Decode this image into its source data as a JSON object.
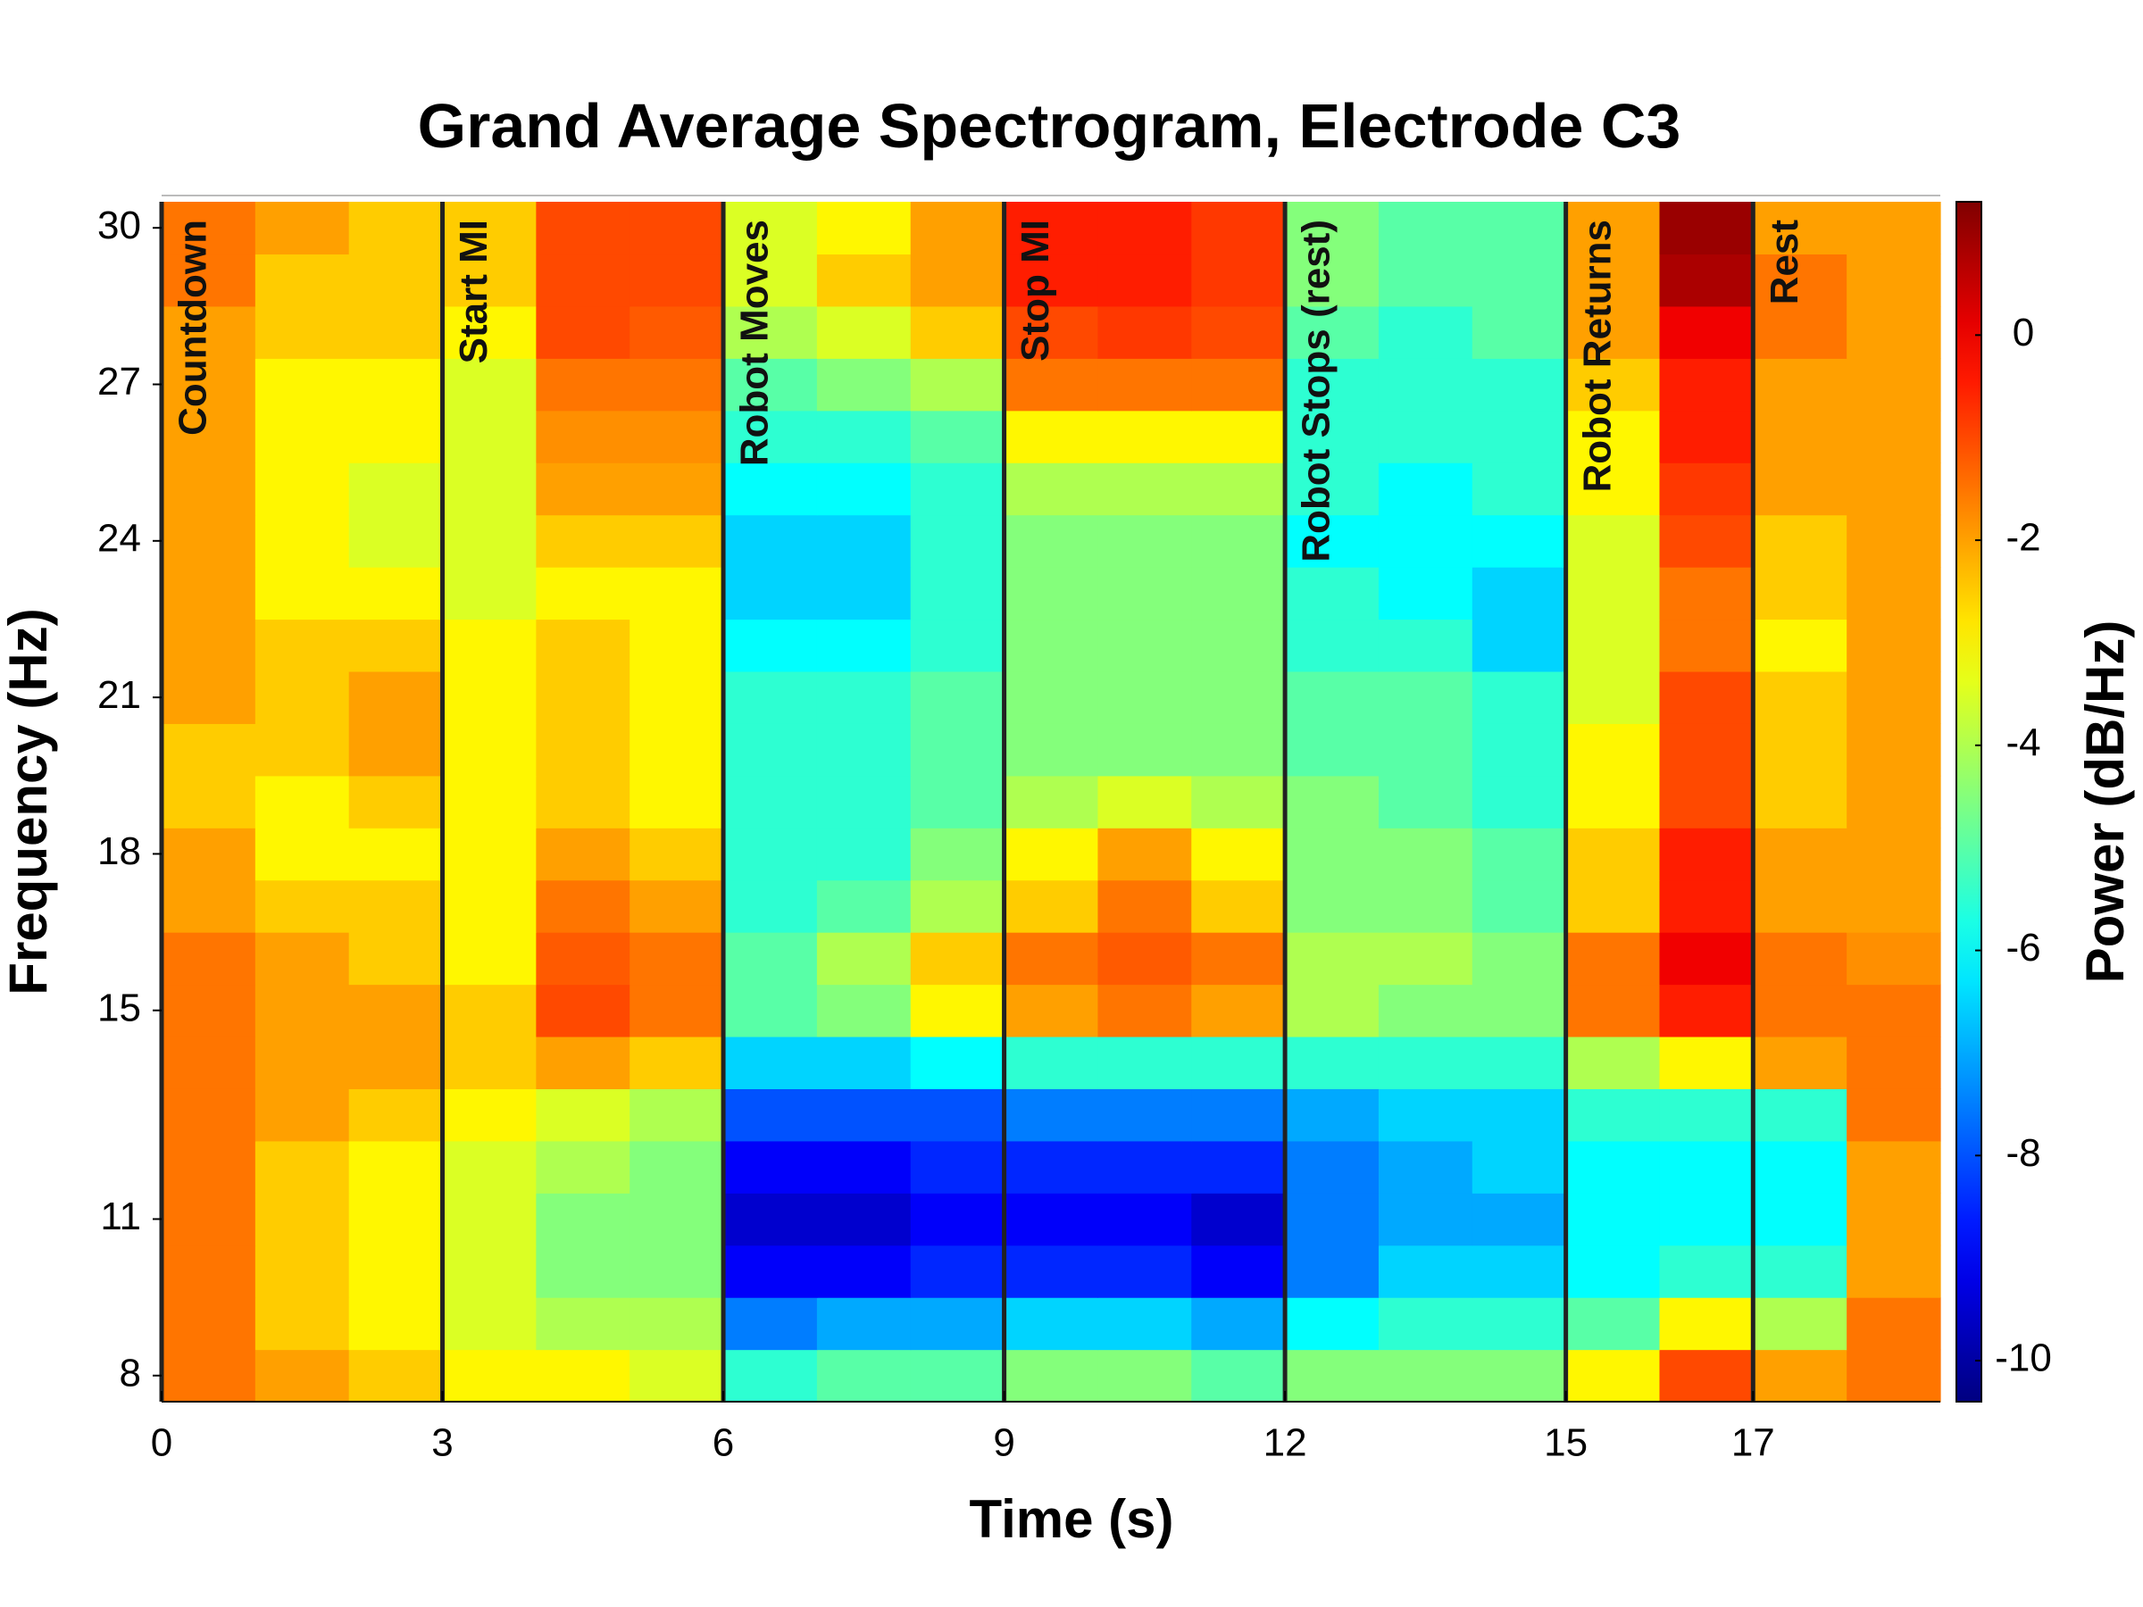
{
  "chart_data": {
    "type": "heatmap",
    "title": "Grand Average Spectrogram, Electrode C3",
    "xlabel": "Time (s)",
    "ylabel": "Frequency (Hz)",
    "colorbar_label": "Power (dB/Hz)",
    "colormap": "jet",
    "x": [
      0.5,
      1.5,
      2.5,
      3.5,
      4.5,
      5.5,
      6.5,
      7.5,
      8.5,
      9.5,
      10.5,
      11.5,
      12.5,
      13.5,
      14.5,
      15.5,
      16.5,
      17.5,
      18.5
    ],
    "y": [
      8,
      9,
      10,
      11,
      12,
      13,
      14,
      15,
      16,
      17,
      18,
      19,
      20,
      21,
      22,
      23,
      24,
      25,
      26,
      27,
      28,
      29,
      30
    ],
    "values": [
      [
        -1.5,
        -2,
        -2.5,
        -3,
        -3,
        -3.5,
        -5.5,
        -5,
        -5,
        -4.5,
        -4.5,
        -5,
        -4.5,
        -4.5,
        -4.5,
        -3,
        -1,
        -2,
        -1.5
      ],
      [
        -1.5,
        -2.5,
        -3,
        -3.5,
        -4,
        -4,
        -7.5,
        -7,
        -7,
        -6.5,
        -6.5,
        -7,
        -6,
        -5.5,
        -5.5,
        -5,
        -3,
        -4,
        -1.5
      ],
      [
        -1.5,
        -2.5,
        -3,
        -3.5,
        -4.5,
        -4.5,
        -9,
        -9,
        -8.5,
        -8.5,
        -8.5,
        -9,
        -7.5,
        -6.5,
        -6.5,
        -6,
        -5.5,
        -5.5,
        -2
      ],
      [
        -1.5,
        -2.5,
        -3,
        -3.5,
        -4.5,
        -4.5,
        -9.5,
        -9.5,
        -9,
        -9,
        -9,
        -9.5,
        -7.5,
        -7,
        -7,
        -6,
        -6,
        -6,
        -2
      ],
      [
        -1.5,
        -2.5,
        -3,
        -3.5,
        -4,
        -4.5,
        -9,
        -9,
        -8.5,
        -8.5,
        -8.5,
        -8.5,
        -7.5,
        -7,
        -6.5,
        -6,
        -6,
        -6,
        -2
      ],
      [
        -1.5,
        -2,
        -2.5,
        -3,
        -3.5,
        -4,
        -8,
        -8,
        -8,
        -7.5,
        -7.5,
        -7.5,
        -7,
        -6.5,
        -6.5,
        -5.5,
        -5.5,
        -5.5,
        -1.5
      ],
      [
        -1.5,
        -2,
        -2,
        -2.5,
        -2,
        -2.5,
        -6.5,
        -6.5,
        -6,
        -5.5,
        -5.5,
        -5.5,
        -5.5,
        -5.5,
        -5.5,
        -4,
        -3,
        -2,
        -1.5
      ],
      [
        -1.5,
        -2,
        -2,
        -2.5,
        -1,
        -1.5,
        -5,
        -4.5,
        -3,
        -2,
        -1.5,
        -2,
        -4,
        -4.5,
        -4.5,
        -1.5,
        -0.5,
        -1.5,
        -1.5
      ],
      [
        -1.5,
        -2,
        -2.5,
        -3,
        -1.2,
        -1.5,
        -5,
        -4,
        -2.5,
        -1.5,
        -1.2,
        -1.5,
        -4,
        -4,
        -4.5,
        -1.5,
        0,
        -1.5,
        -1.8
      ],
      [
        -2,
        -2.5,
        -2.5,
        -3,
        -1.5,
        -2,
        -5.5,
        -5,
        -4,
        -2.5,
        -1.5,
        -2.5,
        -4.5,
        -4.5,
        -5,
        -2.5,
        -0.5,
        -2,
        -2
      ],
      [
        -2,
        -3,
        -3,
        -3,
        -2,
        -2.5,
        -5.5,
        -5.5,
        -4.5,
        -3,
        -2,
        -3,
        -4.5,
        -4.5,
        -5,
        -2.5,
        -0.5,
        -2,
        -2
      ],
      [
        -2.5,
        -3,
        -2.5,
        -3,
        -2.5,
        -3,
        -5.5,
        -5.5,
        -5,
        -4,
        -3.5,
        -4,
        -4.5,
        -5,
        -5.5,
        -3,
        -1,
        -2.5,
        -2
      ],
      [
        -2.5,
        -2.5,
        -2,
        -3,
        -2.5,
        -3,
        -5.5,
        -5.5,
        -5,
        -4.5,
        -4.5,
        -4.5,
        -5,
        -5,
        -5.5,
        -3,
        -1,
        -2.5,
        -2
      ],
      [
        -2,
        -2.5,
        -2,
        -3,
        -2.5,
        -3,
        -5.5,
        -5.5,
        -5,
        -4.5,
        -4.5,
        -4.5,
        -5,
        -5,
        -5.5,
        -3.5,
        -1,
        -2.5,
        -2
      ],
      [
        -2,
        -2.5,
        -2.5,
        -3,
        -2.5,
        -3,
        -6,
        -6,
        -5.5,
        -4.5,
        -4.5,
        -4.5,
        -5.5,
        -5.5,
        -6.5,
        -3.5,
        -1.5,
        -3,
        -2
      ],
      [
        -2,
        -3,
        -3,
        -3.5,
        -3,
        -3,
        -6.5,
        -6.5,
        -5.5,
        -4.5,
        -4.5,
        -4.5,
        -5.5,
        -6,
        -6.5,
        -3.5,
        -1.5,
        -2.5,
        -2
      ],
      [
        -2,
        -3,
        -3.5,
        -3.5,
        -2.5,
        -2.5,
        -6.5,
        -6.5,
        -5.5,
        -4.5,
        -4.5,
        -4.5,
        -6,
        -6,
        -6,
        -3.5,
        -1,
        -2.5,
        -2
      ],
      [
        -2,
        -3,
        -3.5,
        -3.5,
        -2,
        -2,
        -6,
        -6,
        -5.5,
        -4,
        -4,
        -4,
        -5.5,
        -6,
        -5.5,
        -3,
        -0.8,
        -2,
        -2
      ],
      [
        -2,
        -3,
        -3,
        -3.5,
        -1.8,
        -1.8,
        -5.5,
        -5.5,
        -5,
        -3,
        -3,
        -3,
        -5.5,
        -5.5,
        -5.5,
        -3,
        -0.5,
        -2,
        -2
      ],
      [
        -2,
        -3,
        -3,
        -3.5,
        -1.5,
        -1.5,
        -5,
        -4.5,
        -4,
        -1.5,
        -1.5,
        -1.5,
        -5.5,
        -5.5,
        -5.5,
        -2.5,
        -0.5,
        -2,
        -2
      ],
      [
        -2,
        -2.5,
        -2.5,
        -3,
        -1,
        -1.2,
        -4,
        -3.5,
        -2.5,
        -1,
        -0.8,
        -1,
        -5,
        -5.5,
        -5,
        -2,
        0,
        -1.5,
        -2
      ],
      [
        -1.5,
        -2.5,
        -2.5,
        -2.5,
        -1,
        -1,
        -3.5,
        -2.5,
        -2,
        -0.5,
        -0.5,
        -0.8,
        -4.5,
        -5,
        -5,
        -2,
        0.8,
        -1.5,
        -2
      ],
      [
        -1.5,
        -2,
        -2.5,
        -2.5,
        -1,
        -1,
        -3.5,
        -3,
        -2,
        -0.5,
        -0.5,
        -0.8,
        -4.5,
        -5,
        -5,
        -2,
        1,
        -2,
        -2
      ]
    ],
    "xlim": [
      0,
      19
    ],
    "ylim": [
      7.5,
      30.5
    ],
    "xticks": [
      0,
      3,
      6,
      9,
      12,
      15,
      17
    ],
    "yticks": [
      8,
      11,
      15,
      18,
      21,
      24,
      27,
      30
    ],
    "clim": [
      -10.4,
      1.3
    ],
    "cticks": [
      -10,
      -8,
      -6,
      -4,
      -2,
      0
    ],
    "events": [
      {
        "time": 0,
        "label": "Countdown"
      },
      {
        "time": 3,
        "label": "Start MI"
      },
      {
        "time": 6,
        "label": "Robot Moves"
      },
      {
        "time": 9,
        "label": "Stop MI"
      },
      {
        "time": 12,
        "label": "Robot Stops (rest)"
      },
      {
        "time": 15,
        "label": "Robot Returns"
      },
      {
        "time": 17,
        "label": "Rest"
      }
    ],
    "event_color": "#222222"
  }
}
